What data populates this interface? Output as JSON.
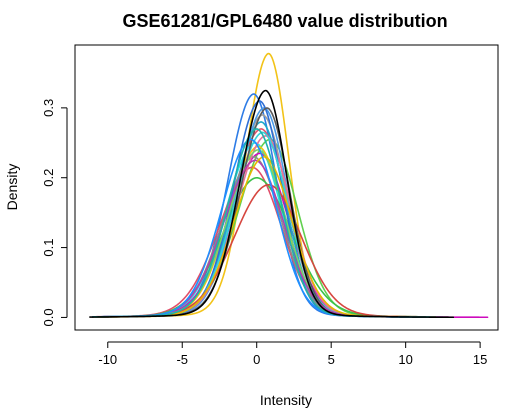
{
  "chart_data": {
    "type": "line",
    "title": "GSE61281/GPL6480 value distribution",
    "xlabel": "Intensity",
    "ylabel": "Density",
    "xlim": [
      -12.2,
      16.2
    ],
    "ylim": [
      -0.018,
      0.39
    ],
    "x_ticks": [
      -10,
      -5,
      0,
      5,
      10,
      15
    ],
    "y_ticks": [
      0.0,
      0.1,
      0.2,
      0.3
    ],
    "x_tick_labels": [
      "-10",
      "-5",
      "0",
      "5",
      "10",
      "15"
    ],
    "y_tick_labels": [
      "0.0",
      "0.1",
      "0.2",
      "0.3"
    ],
    "grid": false,
    "legend": "none",
    "series_count": 24,
    "series": [
      {
        "color": "#F2C318",
        "peak_x": 0.8,
        "peak_y": 0.378,
        "spread_left": 1.55,
        "spread_right": 1.35,
        "x_range": [
          -11,
          11.5
        ],
        "emphasis": false
      },
      {
        "color": "#000000",
        "peak_x": 0.6,
        "peak_y": 0.325,
        "spread_left": 1.7,
        "spread_right": 1.45,
        "x_range": [
          -11.2,
          13.2
        ],
        "emphasis": true
      },
      {
        "color": "#2E7CE6",
        "peak_x": -0.2,
        "peak_y": 0.32,
        "spread_left": 1.75,
        "spread_right": 1.55,
        "x_range": [
          -11,
          12.5
        ],
        "emphasis": false
      },
      {
        "color": "#DF536B",
        "peak_x": 0.3,
        "peak_y": 0.27,
        "spread_left": 2.0,
        "spread_right": 1.75,
        "x_range": [
          -11,
          12
        ],
        "emphasis": false
      },
      {
        "color": "#61D04F",
        "peak_x": 0.9,
        "peak_y": 0.255,
        "spread_left": 2.1,
        "spread_right": 1.85,
        "x_range": [
          -11,
          12
        ],
        "emphasis": false
      },
      {
        "color": "#28E2E5",
        "peak_x": -0.1,
        "peak_y": 0.25,
        "spread_left": 2.0,
        "spread_right": 1.8,
        "x_range": [
          -11,
          12
        ],
        "emphasis": false
      },
      {
        "color": "#CD0BBC",
        "peak_x": 0.2,
        "peak_y": 0.235,
        "spread_left": 2.1,
        "spread_right": 1.9,
        "x_range": [
          -11,
          15.5
        ],
        "emphasis": false
      },
      {
        "color": "#9E9E9E",
        "peak_x": 0.4,
        "peak_y": 0.29,
        "spread_left": 1.85,
        "spread_right": 1.6,
        "x_range": [
          -11,
          12
        ],
        "emphasis": false
      },
      {
        "color": "#F5C710",
        "peak_x": 0.1,
        "peak_y": 0.245,
        "spread_left": 1.95,
        "spread_right": 1.75,
        "x_range": [
          -11,
          12
        ],
        "emphasis": false
      },
      {
        "color": "#4B9BE8",
        "peak_x": 0.5,
        "peak_y": 0.3,
        "spread_left": 1.8,
        "spread_right": 1.55,
        "x_range": [
          -11,
          12
        ],
        "emphasis": false
      },
      {
        "color": "#E04E6A",
        "peak_x": -0.3,
        "peak_y": 0.215,
        "spread_left": 2.2,
        "spread_right": 1.95,
        "x_range": [
          -11,
          12
        ],
        "emphasis": false
      },
      {
        "color": "#3BC14A",
        "peak_x": 0.0,
        "peak_y": 0.2,
        "spread_left": 2.25,
        "spread_right": 2.35,
        "x_range": [
          -11,
          12
        ],
        "emphasis": false
      },
      {
        "color": "#1FA9C9",
        "peak_x": 0.3,
        "peak_y": 0.28,
        "spread_left": 1.85,
        "spread_right": 1.6,
        "x_range": [
          -11,
          12
        ],
        "emphasis": false
      },
      {
        "color": "#8B8B8B",
        "peak_x": -0.2,
        "peak_y": 0.23,
        "spread_left": 2.05,
        "spread_right": 1.85,
        "x_range": [
          -11,
          12
        ],
        "emphasis": false
      },
      {
        "color": "#E8739A",
        "peak_x": 0.6,
        "peak_y": 0.26,
        "spread_left": 1.95,
        "spread_right": 1.7,
        "x_range": [
          -11,
          12
        ],
        "emphasis": false
      },
      {
        "color": "#2F6FD6",
        "peak_x": 0.2,
        "peak_y": 0.31,
        "spread_left": 1.75,
        "spread_right": 1.5,
        "x_range": [
          -11,
          12
        ],
        "emphasis": false
      },
      {
        "color": "#36D3DA",
        "peak_x": 0.4,
        "peak_y": 0.265,
        "spread_left": 1.9,
        "spread_right": 1.7,
        "x_range": [
          -11,
          12
        ],
        "emphasis": false
      },
      {
        "color": "#D6463F",
        "peak_x": 0.8,
        "peak_y": 0.19,
        "spread_left": 2.3,
        "spread_right": 2.2,
        "x_range": [
          -11,
          12
        ],
        "emphasis": false
      },
      {
        "color": "#7CD36B",
        "peak_x": 0.1,
        "peak_y": 0.24,
        "spread_left": 2.0,
        "spread_right": 1.8,
        "x_range": [
          -11,
          12
        ],
        "emphasis": false
      },
      {
        "color": "#5A5A5A",
        "peak_x": 0.7,
        "peak_y": 0.3,
        "spread_left": 1.8,
        "spread_right": 1.5,
        "x_range": [
          -11,
          12
        ],
        "emphasis": false
      },
      {
        "color": "#B23FB0",
        "peak_x": -0.1,
        "peak_y": 0.225,
        "spread_left": 2.1,
        "spread_right": 1.9,
        "x_range": [
          -11,
          12
        ],
        "emphasis": false
      },
      {
        "color": "#E6B800",
        "peak_x": 0.5,
        "peak_y": 0.23,
        "spread_left": 2.0,
        "spread_right": 1.85,
        "x_range": [
          -11,
          12
        ],
        "emphasis": false
      },
      {
        "color": "#1E90FF",
        "peak_x": -0.4,
        "peak_y": 0.255,
        "spread_left": 1.95,
        "spread_right": 1.75,
        "x_range": [
          -11,
          12
        ],
        "emphasis": false
      },
      {
        "color": "#20B2AA",
        "peak_x": 0.0,
        "peak_y": 0.27,
        "spread_left": 1.9,
        "spread_right": 1.65,
        "x_range": [
          -11,
          12
        ],
        "emphasis": false
      }
    ]
  }
}
